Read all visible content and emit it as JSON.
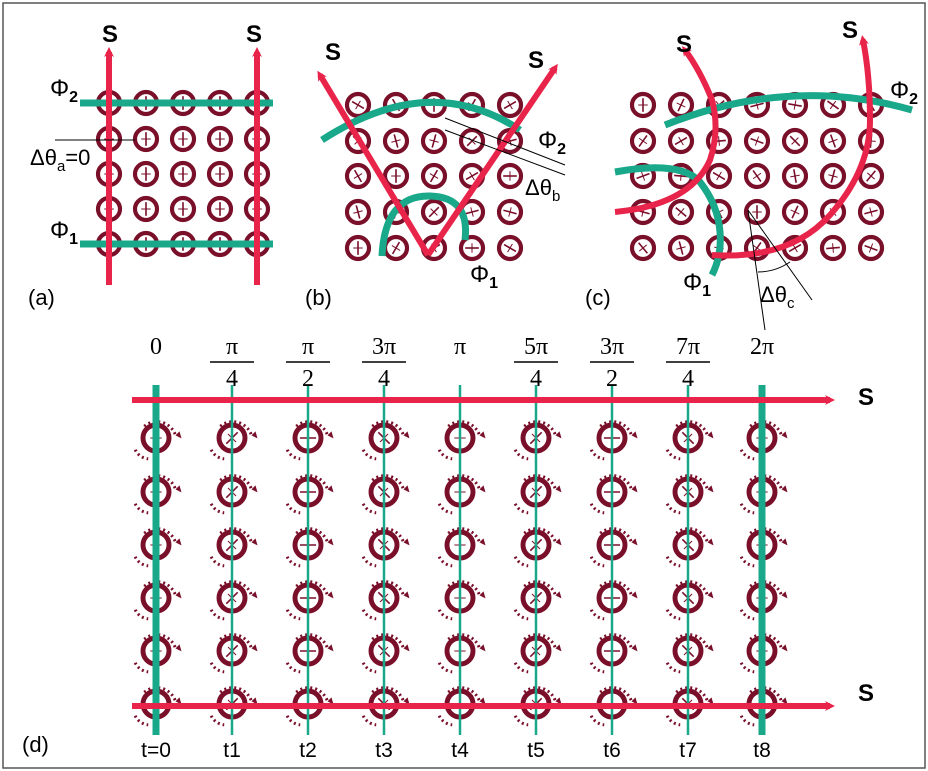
{
  "panels": {
    "a": {
      "label": "(a)",
      "arrow_label": "S",
      "phi1": "Φ",
      "phi1_sub": "1",
      "phi2": "Φ",
      "phi2_sub": "2",
      "delta_theta": "Δθ",
      "delta_theta_sub": "a",
      "delta_theta_value": "=0"
    },
    "b": {
      "label": "(b)",
      "arrow_label": "S",
      "phi1": "Φ",
      "phi1_sub": "1",
      "phi2": "Φ",
      "phi2_sub": "2",
      "delta_theta": "Δθ",
      "delta_theta_sub": "b"
    },
    "c": {
      "label": "(c)",
      "arrow_label": "S",
      "phi1": "Φ",
      "phi1_sub": "1",
      "phi2": "Φ",
      "phi2_sub": "2",
      "delta_theta": "Δθ",
      "delta_theta_sub": "c"
    },
    "d": {
      "label": "(d)",
      "arrow_label": "S",
      "phases": [
        {
          "num": "0",
          "den": ""
        },
        {
          "num": "π",
          "den": "4"
        },
        {
          "num": "π",
          "den": "2"
        },
        {
          "num": "3π",
          "den": "4"
        },
        {
          "num": "π",
          "den": ""
        },
        {
          "num": "5π",
          "den": "4"
        },
        {
          "num": "3π",
          "den": "2"
        },
        {
          "num": "7π",
          "den": "4"
        },
        {
          "num": "2π",
          "den": ""
        }
      ],
      "times": [
        "t=0",
        "t1",
        "t2",
        "t3",
        "t4",
        "t5",
        "t6",
        "t7",
        "t8"
      ]
    }
  },
  "colors": {
    "arrow": "#e8244a",
    "phase_line": "#1aa88a",
    "spin": "#7a0f2a",
    "frame": "#555555"
  }
}
